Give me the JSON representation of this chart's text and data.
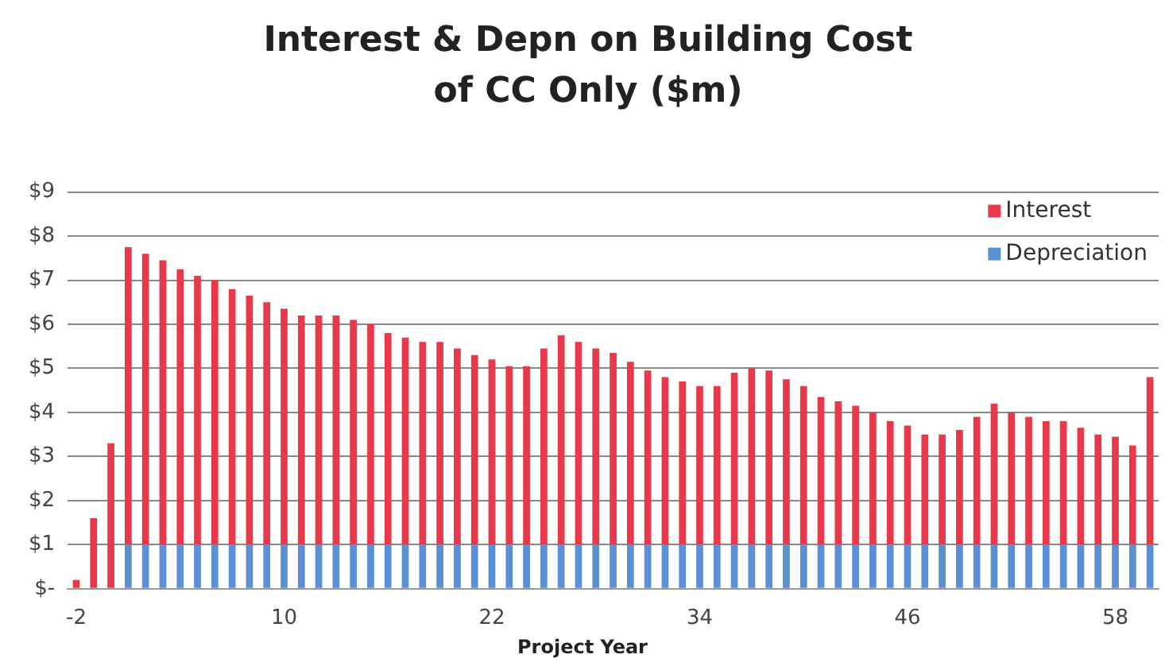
{
  "chart_data": {
    "type": "bar",
    "title": "Interest & Depn on Building Cost of CC Only ($m)",
    "xlabel": "Project Year",
    "categories": [
      "-2",
      null,
      null,
      null,
      null,
      null,
      null,
      null,
      null,
      null,
      null,
      null,
      "10",
      null,
      null,
      null,
      null,
      null,
      null,
      null,
      null,
      null,
      null,
      null,
      "22",
      null,
      null,
      null,
      null,
      null,
      null,
      null,
      null,
      null,
      null,
      null,
      "34",
      null,
      null,
      null,
      null,
      null,
      null,
      null,
      null,
      null,
      null,
      null,
      "46",
      null,
      null,
      null,
      null,
      null,
      null,
      null,
      null,
      null,
      null,
      null,
      "58",
      null,
      null
    ],
    "stacked": true,
    "series": [
      {
        "name": "Depreciation",
        "color": "#5b8fd6",
        "values": [
          null,
          null,
          null,
          1,
          1,
          1,
          1,
          1,
          1,
          1,
          1,
          1,
          1,
          1,
          1,
          1,
          1,
          1,
          1,
          1,
          1,
          1,
          1,
          1,
          1,
          1,
          1,
          1,
          1,
          1,
          1,
          1,
          1,
          1,
          1,
          1,
          1,
          1,
          1,
          1,
          1,
          1,
          1,
          1,
          1,
          1,
          1,
          1,
          1,
          1,
          1,
          1,
          1,
          1,
          1,
          1,
          1,
          1,
          1,
          1,
          1,
          1,
          1
        ]
      },
      {
        "name": "Interest",
        "color": "#e8394a",
        "values": [
          0.2,
          1.6,
          3.3,
          6.75,
          6.6,
          6.45,
          6.25,
          6.1,
          6.0,
          5.8,
          5.65,
          5.5,
          5.35,
          5.2,
          5.2,
          5.2,
          5.1,
          5.0,
          4.8,
          4.7,
          4.6,
          4.6,
          4.45,
          4.3,
          4.2,
          4.05,
          4.05,
          4.45,
          4.75,
          4.6,
          4.45,
          4.35,
          4.15,
          3.95,
          3.8,
          3.7,
          3.6,
          3.6,
          3.9,
          4.0,
          3.95,
          3.75,
          3.6,
          3.35,
          3.25,
          3.15,
          3.0,
          2.8,
          2.7,
          2.5,
          2.5,
          2.6,
          2.9,
          3.2,
          3.0,
          2.9,
          2.8,
          2.8,
          2.65,
          2.5,
          2.45,
          2.25,
          3.8
        ]
      }
    ],
    "ylim": [
      0,
      9
    ],
    "yticks": [
      {
        "value": 0,
        "label": "$-"
      },
      {
        "value": 1,
        "label": "$1"
      },
      {
        "value": 2,
        "label": "$2"
      },
      {
        "value": 3,
        "label": "$3"
      },
      {
        "value": 4,
        "label": "$4"
      },
      {
        "value": 5,
        "label": "$5"
      },
      {
        "value": 6,
        "label": "$6"
      },
      {
        "value": 7,
        "label": "$7"
      },
      {
        "value": 8,
        "label": "$8"
      },
      {
        "value": 9,
        "label": "$9"
      }
    ],
    "grid": "y",
    "legend": "top right"
  }
}
